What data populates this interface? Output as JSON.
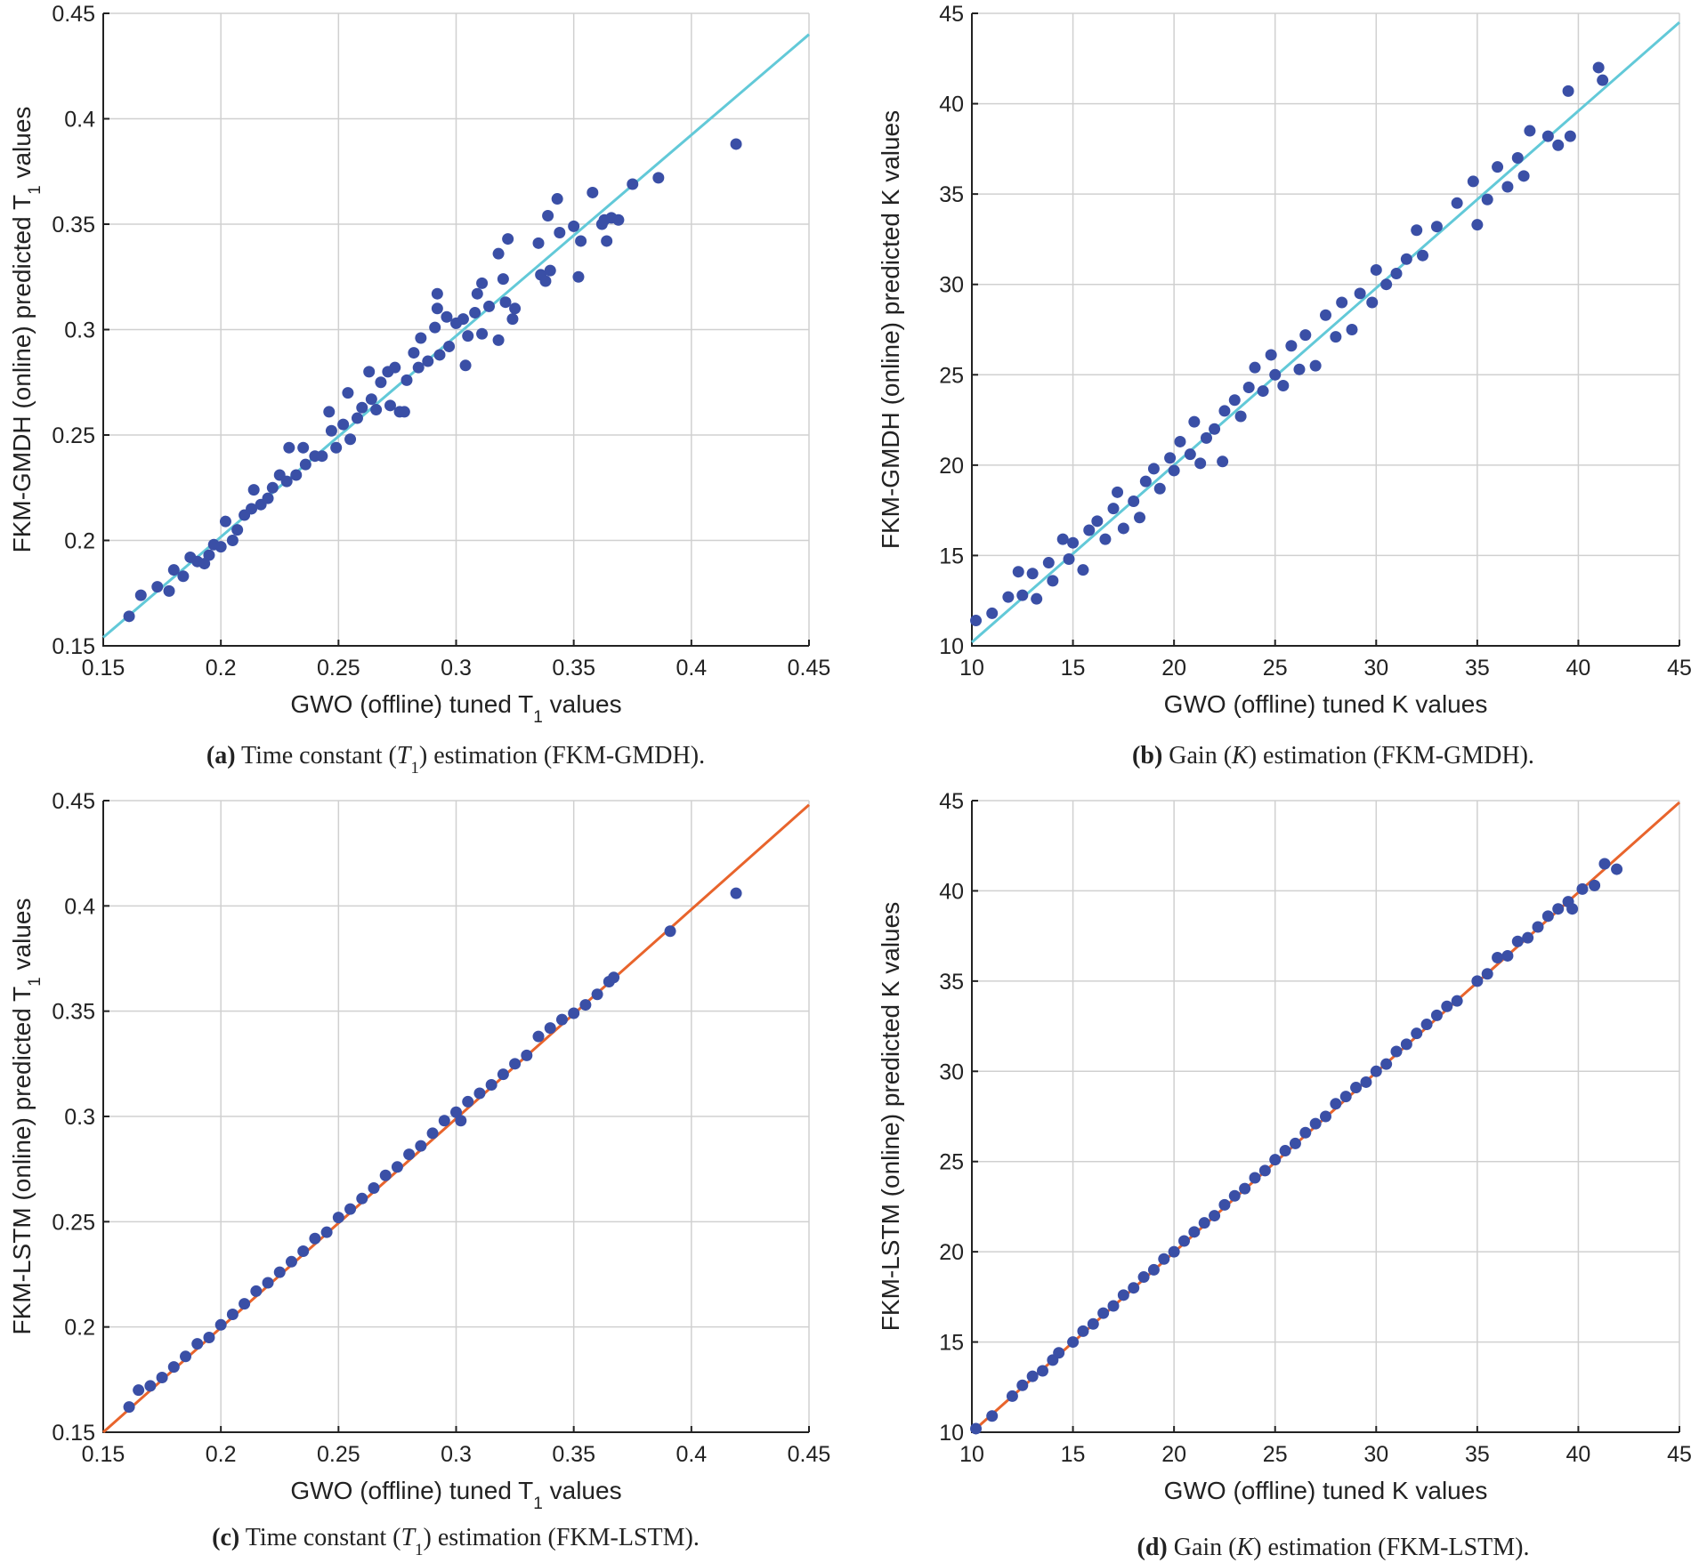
{
  "colors": {
    "points": "#3a4fa6",
    "fit_gmdh": "#62c9d8",
    "fit_lstm": "#e8642c"
  },
  "chart_data": [
    {
      "id": "a",
      "type": "scatter",
      "xlabel": {
        "pre": "GWO  (offline)  tuned  T",
        "sub": "1",
        "post": "  values"
      },
      "ylabel": {
        "pre": "FKM-GMDH  (online)  predicted  T",
        "sub": "1",
        "post": "  values"
      },
      "caption": {
        "tag": "(a)",
        "pre": " Time constant (",
        "var": "T",
        "sub": "1",
        "post": ") estimation (FKM-GMDH)."
      },
      "xlim": [
        0.15,
        0.45
      ],
      "ylim": [
        0.15,
        0.45
      ],
      "xticks": [
        "0.15",
        "0.2",
        "0.25",
        "0.3",
        "0.35",
        "0.4",
        "0.45"
      ],
      "yticks": [
        "0.15",
        "0.2",
        "0.25",
        "0.3",
        "0.35",
        "0.4",
        "0.45"
      ],
      "grid": true,
      "fit_line": [
        [
          0.15,
          0.154
        ],
        [
          0.45,
          0.44
        ]
      ],
      "fit_color": "fit_gmdh",
      "points": [
        [
          0.161,
          0.164
        ],
        [
          0.166,
          0.174
        ],
        [
          0.173,
          0.178
        ],
        [
          0.178,
          0.176
        ],
        [
          0.18,
          0.186
        ],
        [
          0.184,
          0.183
        ],
        [
          0.187,
          0.192
        ],
        [
          0.19,
          0.19
        ],
        [
          0.193,
          0.189
        ],
        [
          0.195,
          0.193
        ],
        [
          0.197,
          0.198
        ],
        [
          0.2,
          0.197
        ],
        [
          0.202,
          0.209
        ],
        [
          0.205,
          0.2
        ],
        [
          0.207,
          0.205
        ],
        [
          0.21,
          0.212
        ],
        [
          0.213,
          0.215
        ],
        [
          0.214,
          0.224
        ],
        [
          0.217,
          0.217
        ],
        [
          0.22,
          0.22
        ],
        [
          0.222,
          0.225
        ],
        [
          0.225,
          0.231
        ],
        [
          0.228,
          0.228
        ],
        [
          0.229,
          0.244
        ],
        [
          0.232,
          0.231
        ],
        [
          0.235,
          0.244
        ],
        [
          0.236,
          0.236
        ],
        [
          0.24,
          0.24
        ],
        [
          0.243,
          0.24
        ],
        [
          0.246,
          0.261
        ],
        [
          0.247,
          0.252
        ],
        [
          0.249,
          0.244
        ],
        [
          0.252,
          0.255
        ],
        [
          0.254,
          0.27
        ],
        [
          0.255,
          0.248
        ],
        [
          0.258,
          0.258
        ],
        [
          0.26,
          0.263
        ],
        [
          0.263,
          0.28
        ],
        [
          0.264,
          0.267
        ],
        [
          0.266,
          0.262
        ],
        [
          0.268,
          0.275
        ],
        [
          0.271,
          0.28
        ],
        [
          0.272,
          0.264
        ],
        [
          0.274,
          0.282
        ],
        [
          0.276,
          0.261
        ],
        [
          0.278,
          0.261
        ],
        [
          0.279,
          0.276
        ],
        [
          0.282,
          0.289
        ],
        [
          0.284,
          0.282
        ],
        [
          0.285,
          0.296
        ],
        [
          0.288,
          0.285
        ],
        [
          0.291,
          0.301
        ],
        [
          0.292,
          0.31
        ],
        [
          0.292,
          0.317
        ],
        [
          0.293,
          0.288
        ],
        [
          0.296,
          0.306
        ],
        [
          0.297,
          0.292
        ],
        [
          0.3,
          0.303
        ],
        [
          0.303,
          0.305
        ],
        [
          0.304,
          0.283
        ],
        [
          0.305,
          0.297
        ],
        [
          0.308,
          0.308
        ],
        [
          0.309,
          0.317
        ],
        [
          0.311,
          0.322
        ],
        [
          0.311,
          0.298
        ],
        [
          0.314,
          0.311
        ],
        [
          0.318,
          0.336
        ],
        [
          0.318,
          0.295
        ],
        [
          0.32,
          0.324
        ],
        [
          0.321,
          0.313
        ],
        [
          0.322,
          0.343
        ],
        [
          0.324,
          0.305
        ],
        [
          0.325,
          0.31
        ],
        [
          0.335,
          0.341
        ],
        [
          0.336,
          0.326
        ],
        [
          0.338,
          0.323
        ],
        [
          0.339,
          0.354
        ],
        [
          0.34,
          0.328
        ],
        [
          0.343,
          0.362
        ],
        [
          0.344,
          0.346
        ],
        [
          0.35,
          0.349
        ],
        [
          0.352,
          0.325
        ],
        [
          0.353,
          0.342
        ],
        [
          0.358,
          0.365
        ],
        [
          0.362,
          0.35
        ],
        [
          0.363,
          0.352
        ],
        [
          0.364,
          0.342
        ],
        [
          0.366,
          0.353
        ],
        [
          0.369,
          0.352
        ],
        [
          0.375,
          0.369
        ],
        [
          0.386,
          0.372
        ],
        [
          0.419,
          0.388
        ]
      ]
    },
    {
      "id": "b",
      "type": "scatter",
      "xlabel": {
        "pre": "GWO (offline) tuned K values",
        "sub": "",
        "post": ""
      },
      "ylabel": {
        "pre": "FKM-GMDH (online) predicted K values",
        "sub": "",
        "post": ""
      },
      "caption": {
        "tag": "(b)",
        "pre": " Gain (",
        "var": "K",
        "sub": "",
        "post": ") estimation (FKM-GMDH)."
      },
      "xlim": [
        10,
        45
      ],
      "ylim": [
        10,
        45
      ],
      "xticks": [
        "10",
        "15",
        "20",
        "25",
        "30",
        "35",
        "40",
        "45"
      ],
      "yticks": [
        "10",
        "15",
        "20",
        "25",
        "30",
        "35",
        "40",
        "45"
      ],
      "grid": true,
      "fit_line": [
        [
          10,
          10.2
        ],
        [
          45,
          44.5
        ]
      ],
      "fit_color": "fit_gmdh",
      "points": [
        [
          10.2,
          11.4
        ],
        [
          11,
          11.8
        ],
        [
          11.8,
          12.7
        ],
        [
          12.3,
          14.1
        ],
        [
          12.5,
          12.8
        ],
        [
          13,
          14
        ],
        [
          13.2,
          12.6
        ],
        [
          13.8,
          14.6
        ],
        [
          14,
          13.6
        ],
        [
          14.5,
          15.9
        ],
        [
          14.8,
          14.8
        ],
        [
          15,
          15.7
        ],
        [
          15.5,
          14.2
        ],
        [
          15.8,
          16.4
        ],
        [
          16.2,
          16.9
        ],
        [
          16.6,
          15.9
        ],
        [
          17,
          17.6
        ],
        [
          17.2,
          18.5
        ],
        [
          17.5,
          16.5
        ],
        [
          18,
          18
        ],
        [
          18.3,
          17.1
        ],
        [
          18.6,
          19.1
        ],
        [
          19,
          19.8
        ],
        [
          19.3,
          18.7
        ],
        [
          19.8,
          20.4
        ],
        [
          20,
          19.7
        ],
        [
          20.3,
          21.3
        ],
        [
          20.8,
          20.6
        ],
        [
          21,
          22.4
        ],
        [
          21.3,
          20.1
        ],
        [
          21.6,
          21.5
        ],
        [
          22,
          22
        ],
        [
          22.4,
          20.2
        ],
        [
          22.5,
          23
        ],
        [
          23,
          23.6
        ],
        [
          23.3,
          22.7
        ],
        [
          23.7,
          24.3
        ],
        [
          24,
          25.4
        ],
        [
          24.4,
          24.1
        ],
        [
          24.8,
          26.1
        ],
        [
          25,
          25
        ],
        [
          25.4,
          24.4
        ],
        [
          25.8,
          26.6
        ],
        [
          26.2,
          25.3
        ],
        [
          26.5,
          27.2
        ],
        [
          27,
          25.5
        ],
        [
          27.5,
          28.3
        ],
        [
          28,
          27.1
        ],
        [
          28.3,
          29
        ],
        [
          28.8,
          27.5
        ],
        [
          29.2,
          29.5
        ],
        [
          29.8,
          29
        ],
        [
          30,
          30.8
        ],
        [
          30.5,
          30
        ],
        [
          31,
          30.6
        ],
        [
          31.5,
          31.4
        ],
        [
          32,
          33
        ],
        [
          32.3,
          31.6
        ],
        [
          33,
          33.2
        ],
        [
          34,
          34.5
        ],
        [
          34.8,
          35.7
        ],
        [
          35,
          33.3
        ],
        [
          35.5,
          34.7
        ],
        [
          36,
          36.5
        ],
        [
          36.5,
          35.4
        ],
        [
          37,
          37
        ],
        [
          37.3,
          36
        ],
        [
          37.6,
          38.5
        ],
        [
          38.5,
          38.2
        ],
        [
          39,
          37.7
        ],
        [
          39.5,
          40.7
        ],
        [
          39.6,
          38.2
        ],
        [
          41,
          42
        ],
        [
          41.2,
          41.3
        ]
      ]
    },
    {
      "id": "c",
      "type": "scatter",
      "xlabel": {
        "pre": "GWO  (offline)  tuned  T",
        "sub": "1",
        "post": "  values"
      },
      "ylabel": {
        "pre": "FKM-LSTM  (online)  predicted  T",
        "sub": "1",
        "post": "  values"
      },
      "caption": {
        "tag": "(c)",
        "pre": " Time constant (",
        "var": "T",
        "sub": "1",
        "post": ") estimation (FKM-LSTM)."
      },
      "xlim": [
        0.15,
        0.45
      ],
      "ylim": [
        0.15,
        0.45
      ],
      "xticks": [
        "0.15",
        "0.2",
        "0.25",
        "0.3",
        "0.35",
        "0.4",
        "0.45"
      ],
      "yticks": [
        "0.15",
        "0.2",
        "0.25",
        "0.3",
        "0.35",
        "0.4",
        "0.45"
      ],
      "grid": true,
      "fit_line": [
        [
          0.15,
          0.15
        ],
        [
          0.45,
          0.448
        ]
      ],
      "fit_color": "fit_lstm",
      "points": [
        [
          0.161,
          0.162
        ],
        [
          0.165,
          0.17
        ],
        [
          0.17,
          0.172
        ],
        [
          0.175,
          0.176
        ],
        [
          0.18,
          0.181
        ],
        [
          0.185,
          0.186
        ],
        [
          0.19,
          0.192
        ],
        [
          0.195,
          0.195
        ],
        [
          0.2,
          0.201
        ],
        [
          0.205,
          0.206
        ],
        [
          0.21,
          0.211
        ],
        [
          0.215,
          0.217
        ],
        [
          0.22,
          0.221
        ],
        [
          0.225,
          0.226
        ],
        [
          0.23,
          0.231
        ],
        [
          0.235,
          0.236
        ],
        [
          0.24,
          0.242
        ],
        [
          0.245,
          0.245
        ],
        [
          0.25,
          0.252
        ],
        [
          0.255,
          0.256
        ],
        [
          0.26,
          0.261
        ],
        [
          0.265,
          0.266
        ],
        [
          0.27,
          0.272
        ],
        [
          0.275,
          0.276
        ],
        [
          0.28,
          0.282
        ],
        [
          0.285,
          0.286
        ],
        [
          0.29,
          0.292
        ],
        [
          0.295,
          0.298
        ],
        [
          0.3,
          0.302
        ],
        [
          0.302,
          0.298
        ],
        [
          0.305,
          0.307
        ],
        [
          0.31,
          0.311
        ],
        [
          0.315,
          0.315
        ],
        [
          0.32,
          0.32
        ],
        [
          0.325,
          0.325
        ],
        [
          0.33,
          0.329
        ],
        [
          0.335,
          0.338
        ],
        [
          0.34,
          0.342
        ],
        [
          0.345,
          0.346
        ],
        [
          0.35,
          0.349
        ],
        [
          0.355,
          0.353
        ],
        [
          0.36,
          0.358
        ],
        [
          0.365,
          0.364
        ],
        [
          0.367,
          0.366
        ],
        [
          0.391,
          0.388
        ],
        [
          0.419,
          0.406
        ]
      ]
    },
    {
      "id": "d",
      "type": "scatter",
      "xlabel": {
        "pre": "GWO (offline) tuned K values",
        "sub": "",
        "post": ""
      },
      "ylabel": {
        "pre": "FKM-LSTM (online) predicted K values",
        "sub": "",
        "post": ""
      },
      "caption": {
        "tag": "(d)",
        "pre": " Gain (",
        "var": "K",
        "sub": "",
        "post": ") estimation (FKM-LSTM)."
      },
      "xlim": [
        10,
        45
      ],
      "ylim": [
        10,
        45
      ],
      "xticks": [
        "10",
        "15",
        "20",
        "25",
        "30",
        "35",
        "40",
        "45"
      ],
      "yticks": [
        "10",
        "15",
        "20",
        "25",
        "30",
        "35",
        "40",
        "45"
      ],
      "grid": true,
      "fit_line": [
        [
          10,
          10
        ],
        [
          45,
          44.9
        ]
      ],
      "fit_color": "fit_lstm",
      "points": [
        [
          10.2,
          10.2
        ],
        [
          11,
          10.9
        ],
        [
          12,
          12
        ],
        [
          12.5,
          12.6
        ],
        [
          13,
          13.1
        ],
        [
          13.5,
          13.4
        ],
        [
          14,
          14
        ],
        [
          14.3,
          14.4
        ],
        [
          15,
          15
        ],
        [
          15.5,
          15.6
        ],
        [
          16,
          16
        ],
        [
          16.5,
          16.6
        ],
        [
          17,
          17
        ],
        [
          17.5,
          17.6
        ],
        [
          18,
          18
        ],
        [
          18.5,
          18.6
        ],
        [
          19,
          19
        ],
        [
          19.5,
          19.6
        ],
        [
          20,
          20
        ],
        [
          20.5,
          20.6
        ],
        [
          21,
          21.1
        ],
        [
          21.5,
          21.6
        ],
        [
          22,
          22
        ],
        [
          22.5,
          22.6
        ],
        [
          23,
          23.1
        ],
        [
          23.5,
          23.5
        ],
        [
          24,
          24.1
        ],
        [
          24.5,
          24.5
        ],
        [
          25,
          25.1
        ],
        [
          25.5,
          25.6
        ],
        [
          26,
          26
        ],
        [
          26.5,
          26.6
        ],
        [
          27,
          27.1
        ],
        [
          27.5,
          27.5
        ],
        [
          28,
          28.2
        ],
        [
          28.5,
          28.6
        ],
        [
          29,
          29.1
        ],
        [
          29.5,
          29.4
        ],
        [
          30,
          30
        ],
        [
          30.5,
          30.4
        ],
        [
          31,
          31.1
        ],
        [
          31.5,
          31.5
        ],
        [
          32,
          32.1
        ],
        [
          32.5,
          32.6
        ],
        [
          33,
          33.1
        ],
        [
          33.5,
          33.6
        ],
        [
          34,
          33.9
        ],
        [
          35,
          35
        ],
        [
          35.5,
          35.4
        ],
        [
          36,
          36.3
        ],
        [
          36.5,
          36.4
        ],
        [
          37,
          37.2
        ],
        [
          37.5,
          37.4
        ],
        [
          38,
          38
        ],
        [
          38.5,
          38.6
        ],
        [
          39,
          39
        ],
        [
          39.5,
          39.4
        ],
        [
          39.7,
          39
        ],
        [
          40.2,
          40.1
        ],
        [
          40.8,
          40.3
        ],
        [
          41.3,
          41.5
        ],
        [
          41.9,
          41.2
        ]
      ]
    }
  ]
}
